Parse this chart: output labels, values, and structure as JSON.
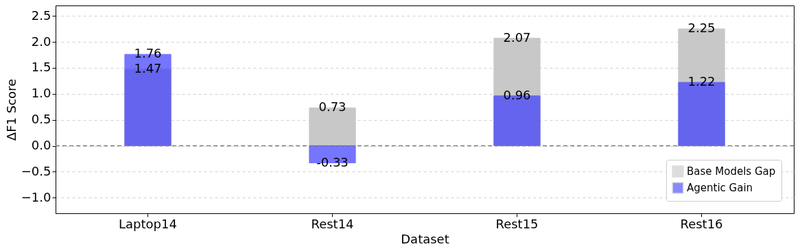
{
  "chart_data": {
    "type": "bar",
    "xlabel": "Dataset",
    "ylabel": "ΔF1 Score",
    "categories": [
      "Laptop14",
      "Rest14",
      "Rest15",
      "Rest16"
    ],
    "series": [
      {
        "name": "Base Models Gap",
        "color": "#c8c8c8",
        "values": [
          1.47,
          0.73,
          2.07,
          2.25
        ]
      },
      {
        "name": "Agentic Gain",
        "color": "#3b3bff",
        "values": [
          1.76,
          -0.33,
          0.96,
          1.22
        ]
      }
    ],
    "ylim": [
      -1.3,
      2.7
    ],
    "yticks": [
      {
        "value": -1,
        "label": "−1.0"
      },
      -0.5,
      {
        "value": 0,
        "label": "0.0"
      },
      0.5,
      {
        "value": 1,
        "label": "1.0"
      },
      1.5,
      {
        "value": 2,
        "label": "2.0"
      },
      2.5
    ],
    "ref_lines": [
      {
        "axis": "y",
        "value": 0,
        "color": "#808080",
        "line_style": "dashed"
      }
    ],
    "data_labels": true,
    "grid": "y",
    "legend": "bottom right"
  }
}
